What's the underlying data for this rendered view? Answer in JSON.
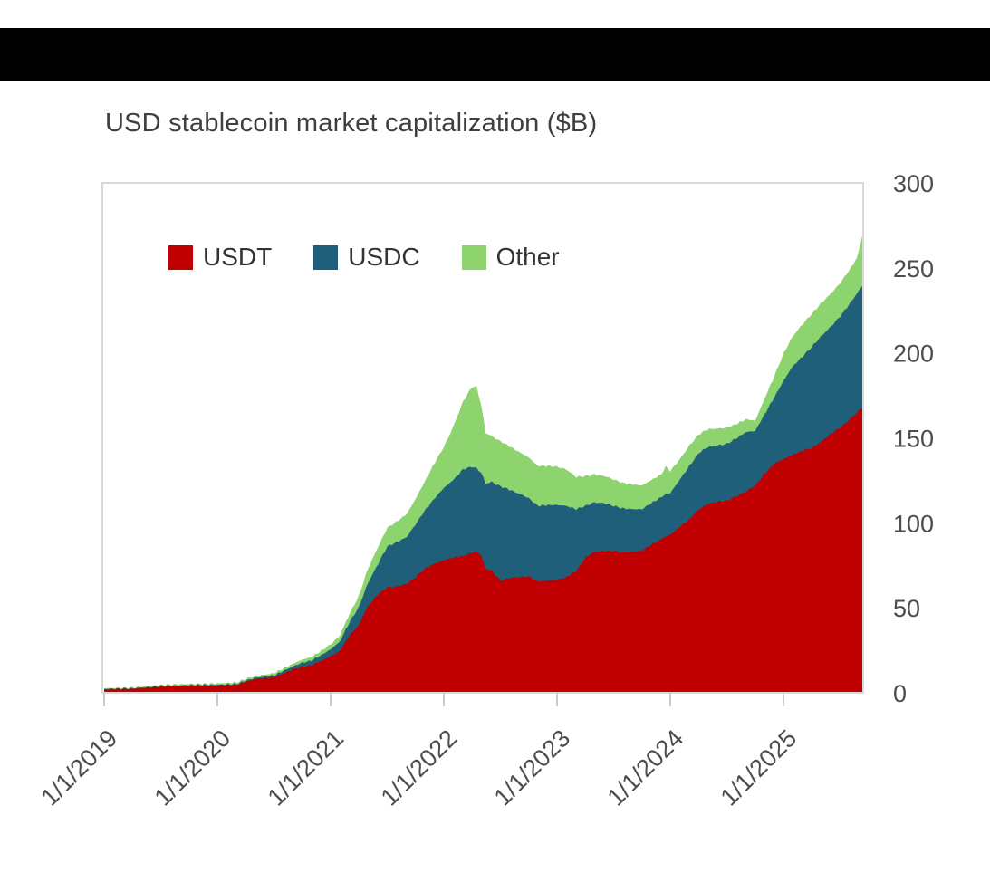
{
  "page": {
    "background_color": "#ffffff",
    "top_banner_color": "#000000"
  },
  "chart_data": {
    "type": "area",
    "stacked": true,
    "title": "USD stablecoin market capitalization ($B)",
    "xlabel": "",
    "ylabel": "",
    "grid": false,
    "legend_position": "top-left-inside",
    "legend": [
      {
        "label": "USDT",
        "color": "#c00000"
      },
      {
        "label": "USDC",
        "color": "#1f5f7a"
      },
      {
        "label": "Other",
        "color": "#8dd36e"
      }
    ],
    "ylim": [
      0,
      300
    ],
    "y_ticks": [
      0,
      50,
      100,
      150,
      200,
      250,
      300
    ],
    "xlim": [
      2019.0,
      2025.7
    ],
    "x_tick_years": [
      2019,
      2020,
      2021,
      2022,
      2023,
      2024,
      2025
    ],
    "x_tick_labels": [
      "1/1/2019",
      "1/1/2020",
      "1/1/2021",
      "1/1/2022",
      "1/1/2023",
      "1/1/2024",
      "1/1/2025"
    ],
    "x": [
      2019.0,
      2019.25,
      2019.5,
      2019.75,
      2020.0,
      2020.17,
      2020.25,
      2020.33,
      2020.5,
      2020.67,
      2020.75,
      2020.83,
      2020.92,
      2021.0,
      2021.08,
      2021.17,
      2021.25,
      2021.33,
      2021.42,
      2021.5,
      2021.58,
      2021.67,
      2021.75,
      2021.83,
      2021.92,
      2022.0,
      2022.08,
      2022.17,
      2022.25,
      2022.29,
      2022.33,
      2022.37,
      2022.42,
      2022.5,
      2022.58,
      2022.67,
      2022.75,
      2022.83,
      2022.92,
      2023.0,
      2023.08,
      2023.17,
      2023.25,
      2023.33,
      2023.42,
      2023.5,
      2023.58,
      2023.67,
      2023.75,
      2023.83,
      2023.92,
      2023.96,
      2024.0,
      2024.08,
      2024.17,
      2024.25,
      2024.33,
      2024.42,
      2024.5,
      2024.58,
      2024.67,
      2024.75,
      2024.83,
      2024.92,
      2025.0,
      2025.08,
      2025.17,
      2025.25,
      2025.33,
      2025.42,
      2025.5,
      2025.58,
      2025.65,
      2025.7
    ],
    "series": [
      {
        "name": "USDT",
        "color": "#c00000",
        "values": [
          2.0,
          2.3,
          3.6,
          4.1,
          4.2,
          4.6,
          6.4,
          8.0,
          9.2,
          13.8,
          15.3,
          16.2,
          19.0,
          21.5,
          24.5,
          34.0,
          40.0,
          51.0,
          58.0,
          62.0,
          62.5,
          64.0,
          68.0,
          73.0,
          76.0,
          78.0,
          79.5,
          80.5,
          82.5,
          83.0,
          81.0,
          73.0,
          72.0,
          66.0,
          67.5,
          68.0,
          68.5,
          65.5,
          66.0,
          66.5,
          68.0,
          71.5,
          79.5,
          83.0,
          83.5,
          83.5,
          82.5,
          83.0,
          83.5,
          87.0,
          90.5,
          92.0,
          93.0,
          97.5,
          102.0,
          108.0,
          111.0,
          112.5,
          113.0,
          115.5,
          118.5,
          122.0,
          128.5,
          135.0,
          137.5,
          140.0,
          142.5,
          144.0,
          147.5,
          152.5,
          156.0,
          160.5,
          165.0,
          168.0
        ]
      },
      {
        "name": "USDC",
        "color": "#1f5f7a",
        "values": [
          0.3,
          0.3,
          0.4,
          0.4,
          0.5,
          0.6,
          0.7,
          0.7,
          1.0,
          1.8,
          2.4,
          2.7,
          3.3,
          4.0,
          5.5,
          8.0,
          10.5,
          13.5,
          18.0,
          24.0,
          26.0,
          27.5,
          31.0,
          34.0,
          38.5,
          42.5,
          45.5,
          51.0,
          50.5,
          49.0,
          48.5,
          50.0,
          52.0,
          55.5,
          52.0,
          49.0,
          46.0,
          44.5,
          44.5,
          44.0,
          42.0,
          36.5,
          30.5,
          29.0,
          28.0,
          26.5,
          26.0,
          25.0,
          24.5,
          24.5,
          24.5,
          25.0,
          24.5,
          27.5,
          31.5,
          33.0,
          33.5,
          33.0,
          33.5,
          34.0,
          35.0,
          32.0,
          35.0,
          39.0,
          46.0,
          52.0,
          55.5,
          59.5,
          62.0,
          63.0,
          65.5,
          68.0,
          70.0,
          72.0
        ]
      },
      {
        "name": "Other",
        "color": "#8dd36e",
        "values": [
          0.4,
          0.5,
          0.6,
          0.7,
          0.8,
          0.9,
          1.0,
          1.1,
          1.3,
          1.6,
          1.8,
          2.1,
          2.5,
          3.0,
          3.5,
          5.0,
          6.5,
          8.5,
          10.0,
          11.0,
          12.0,
          13.5,
          15.0,
          17.0,
          21.0,
          24.0,
          31.0,
          40.0,
          47.0,
          48.0,
          40.0,
          30.0,
          27.0,
          26.5,
          25.5,
          24.5,
          24.0,
          23.5,
          23.0,
          22.5,
          21.5,
          19.0,
          17.5,
          16.5,
          16.0,
          15.5,
          15.0,
          14.5,
          14.0,
          13.5,
          13.5,
          16.0,
          13.0,
          12.0,
          12.0,
          11.0,
          10.5,
          10.0,
          9.5,
          8.5,
          7.5,
          6.0,
          9.0,
          12.5,
          16.0,
          17.5,
          19.0,
          19.5,
          19.5,
          19.5,
          19.5,
          20.0,
          21.0,
          30.0
        ]
      }
    ],
    "axis_text_color": "#4d4d4d",
    "plot_border_color": "#d9d9d9"
  }
}
